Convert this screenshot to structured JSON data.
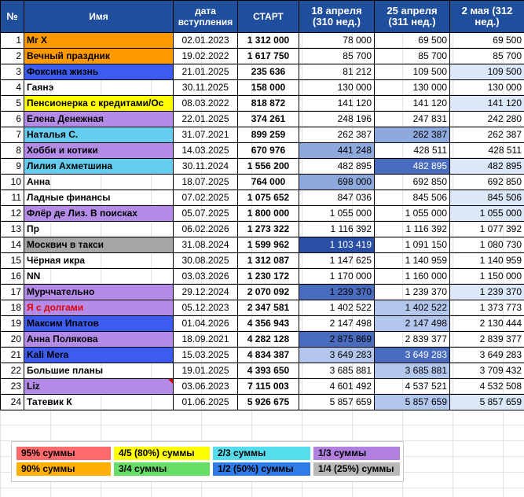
{
  "header": {
    "col_idx": "№",
    "col_name": "Имя",
    "col_date": "дата вступления",
    "col_start": "СТАРТ",
    "col_w1": "18 апреля (310 нед.)",
    "col_w2": "25 апреля (311 нед.)",
    "col_w3": "2 мая (312 нед.)"
  },
  "colors": {
    "header": "#1f4e9c",
    "orange": "#ff9900",
    "blue": "#3c5cf0",
    "yellow": "#ffff00",
    "purple": "#b48ce8",
    "cyan": "#66ccee",
    "gray": "#a6a6a6",
    "pale": "#dbe8f7",
    "light": "#b3c7ec",
    "mid": "#8ea9dc",
    "deep": "#4a6cbf",
    "darkest": "#2a4fa5"
  },
  "rows": [
    {
      "n": "1",
      "name": "Mr X",
      "date": "02.01.2023",
      "start": "1 312 000",
      "w1": "78 000",
      "w2": "69 500",
      "w3": "69 500"
    },
    {
      "n": "2",
      "name": "Вечный праздник",
      "date": "19.02.2022",
      "start": "1 617 750",
      "w1": "85 700",
      "w2": "85 700",
      "w3": "85 700"
    },
    {
      "n": "3",
      "name": "Фоксина жизнь",
      "date": "21.01.2025",
      "start": "235 636",
      "w1": "81 212",
      "w2": "109 500",
      "w3": "109 500"
    },
    {
      "n": "4",
      "name": "Гаянэ",
      "date": "30.11.2025",
      "start": "158 000",
      "w1": "130 000",
      "w2": "130 000",
      "w3": "130 000"
    },
    {
      "n": "5",
      "name": "Пенсионерка с кредитами/Ос",
      "date": "08.03.2022",
      "start": "818 872",
      "w1": "141 120",
      "w2": "141 120",
      "w3": "141 120"
    },
    {
      "n": "6",
      "name": "Елена Денежная",
      "date": "22.01.2025",
      "start": "374 261",
      "w1": "248 196",
      "w2": "247 831",
      "w3": "242 280"
    },
    {
      "n": "7",
      "name": "Наталья С.",
      "date": "31.07.2021",
      "start": "899 259",
      "w1": "262 387",
      "w2": "262 387",
      "w3": "262 387"
    },
    {
      "n": "8",
      "name": "Хобби и котики",
      "date": "14.03.2025",
      "start": "670 976",
      "w1": "441 248",
      "w2": "428 511",
      "w3": "428 511"
    },
    {
      "n": "9",
      "name": "Лилия Ахметшина",
      "date": "30.11.2024",
      "start": "1 556 200",
      "w1": "482 895",
      "w2": "482 895",
      "w3": "482 895"
    },
    {
      "n": "10",
      "name": "Анна",
      "date": "18.07.2025",
      "start": "764 000",
      "w1": "698 000",
      "w2": "692 850",
      "w3": "692 850"
    },
    {
      "n": "11",
      "name": "Ладные финансы",
      "date": "07.02.2025",
      "start": "1 075 652",
      "w1": "847 036",
      "w2": "845 506",
      "w3": "845 506"
    },
    {
      "n": "12",
      "name": "Флёр де Лиз. В поисках",
      "date": "05.07.2025",
      "start": "1 800 000",
      "w1": "1 055 000",
      "w2": "1 055 000",
      "w3": "1 055 000"
    },
    {
      "n": "13",
      "name": "Пр",
      "date": "06.02.2026",
      "start": "1 273 322",
      "w1": "1 116 392",
      "w2": "1 116 392",
      "w3": "1 077 392"
    },
    {
      "n": "14",
      "name": "Москвич в такси",
      "date": "31.08.2024",
      "start": "1 599 962",
      "w1": "1 103 419",
      "w2": "1 091 150",
      "w3": "1 080 730"
    },
    {
      "n": "15",
      "name": "Чёрная икра",
      "date": "30.08.2025",
      "start": "1 312 087",
      "w1": "1 147 625",
      "w2": "1 140 959",
      "w3": "1 140 959"
    },
    {
      "n": "16",
      "name": "NN",
      "date": "03.03.2026",
      "start": "1 230 172",
      "w1": "1 170 000",
      "w2": "1 160 000",
      "w3": "1 150 000"
    },
    {
      "n": "17",
      "name": "Мурччательно",
      "date": "29.12.2024",
      "start": "2 070 092",
      "w1": "1 239 370",
      "w2": "1 239 370",
      "w3": "1 239 370"
    },
    {
      "n": "18",
      "name": "Я с долгами",
      "date": "05.12.2023",
      "start": "2 347 581",
      "w1": "1 402 522",
      "w2": "1 402 522",
      "w3": "1 373 773"
    },
    {
      "n": "19",
      "name": "Максим Ипатов",
      "date": "01.04.2026",
      "start": "4 356 943",
      "w1": "2 147 498",
      "w2": "2 147 498",
      "w3": "2 130 444"
    },
    {
      "n": "20",
      "name": "Анна Полякова",
      "date": "18.09.2021",
      "start": "4 282 128",
      "w1": "2 875 869",
      "w2": "2 839 377",
      "w3": "2 839 377"
    },
    {
      "n": "21",
      "name": "Kali Mera",
      "date": "15.03.2025",
      "start": "4 834 387",
      "w1": "3 649 283",
      "w2": "3 649 283",
      "w3": "3 649 283"
    },
    {
      "n": "22",
      "name": "Большие планы",
      "date": "19.01.2025",
      "start": "4 393 650",
      "w1": "3 685 881",
      "w2": "3 685 881",
      "w3": "3 709 432"
    },
    {
      "n": "23",
      "name": "Liz",
      "date": "03.06.2023",
      "start": "7 115 003",
      "w1": "4 601 492",
      "w2": "4 537 521",
      "w3": "4 532 508"
    },
    {
      "n": "24",
      "name": "Татевик К",
      "date": "01.06.2025",
      "start": "5 926 675",
      "w1": "5 857 659",
      "w2": "5 857 659",
      "w3": "5 857 659"
    }
  ],
  "legend": [
    {
      "label": "95% суммы",
      "color": "#ff6b6b"
    },
    {
      "label": "4/5 (80%) суммы",
      "color": "#ffff00"
    },
    {
      "label": "2/3 суммы",
      "color": "#55ddee"
    },
    {
      "label": "1/3 суммы",
      "color": "#b07fe0"
    },
    {
      "label": "90% суммы",
      "color": "#ffb000"
    },
    {
      "label": "3/4 суммы",
      "color": "#66dd66"
    },
    {
      "label": "1/2 (50%) суммы",
      "color": "#2f7be8"
    },
    {
      "label": "1/4 (25%) суммы",
      "color": "#b8b8b8"
    }
  ]
}
